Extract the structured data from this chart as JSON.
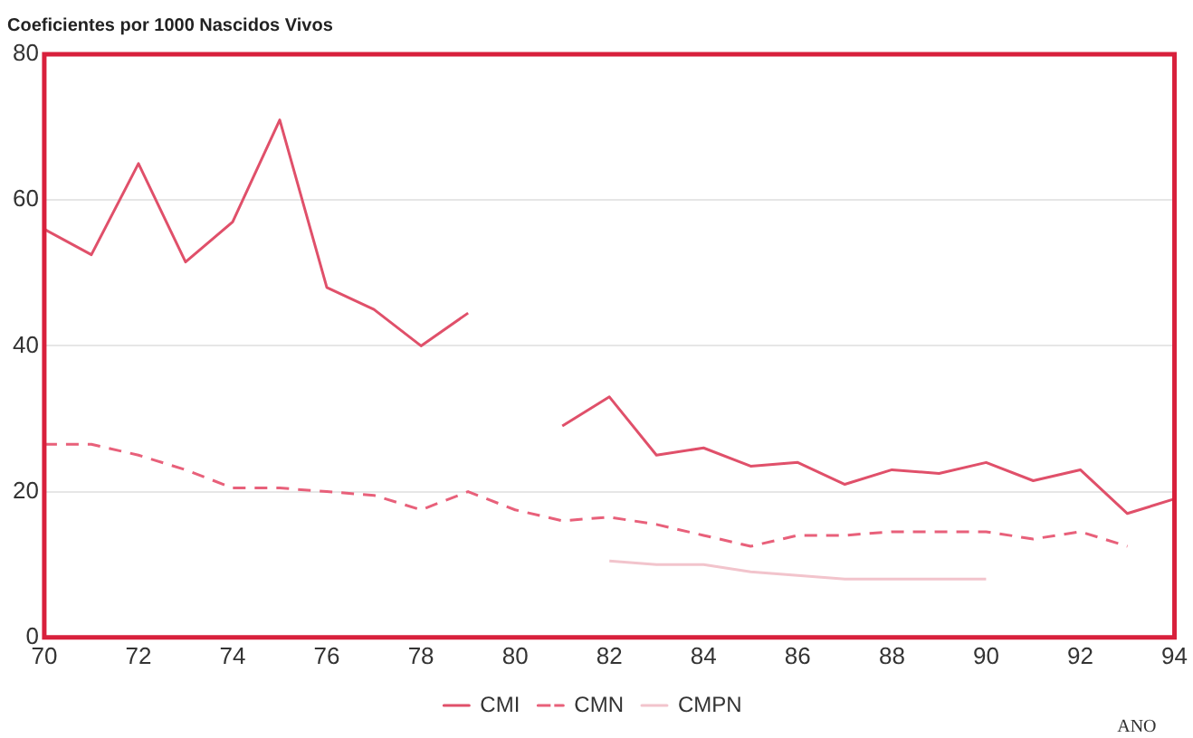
{
  "chart_data": {
    "type": "line",
    "title": "Coeficientes por 1000 Nascidos Vivos",
    "xlabel": "ANO",
    "x": [
      70,
      71,
      72,
      73,
      74,
      75,
      76,
      77,
      78,
      79,
      80,
      81,
      82,
      83,
      84,
      85,
      86,
      87,
      88,
      89,
      90,
      91,
      92,
      93,
      94
    ],
    "series": [
      {
        "name": "CMI",
        "color": "#e0506a",
        "line_style": "solid",
        "values": [
          56,
          52.5,
          65,
          51.5,
          57,
          71,
          48,
          45,
          40,
          44.5,
          null,
          29,
          33,
          25,
          26,
          23.5,
          24,
          21,
          23,
          22.5,
          24,
          21.5,
          23,
          17,
          19
        ]
      },
      {
        "name": "CMN",
        "color": "#e8607a",
        "line_style": "dashed",
        "values": [
          26.5,
          26.5,
          25,
          23,
          20.5,
          20.5,
          20,
          19.5,
          17.5,
          20,
          17.5,
          16,
          16.5,
          15.5,
          14,
          12.5,
          14,
          14,
          14.5,
          14.5,
          14.5,
          13.5,
          14.5,
          12.5,
          null
        ]
      },
      {
        "name": "CMPN",
        "color": "#f2c4cc",
        "line_style": "solid",
        "values": [
          null,
          null,
          null,
          null,
          null,
          null,
          null,
          null,
          null,
          null,
          null,
          null,
          10.5,
          10,
          10,
          9,
          8.5,
          8,
          8,
          8,
          8,
          null,
          null,
          null,
          null
        ]
      }
    ],
    "xlim": [
      70,
      94
    ],
    "xticks": [
      70,
      72,
      74,
      76,
      78,
      80,
      82,
      84,
      86,
      88,
      90,
      92,
      94
    ],
    "ylim": [
      0,
      80
    ],
    "yticks": [
      0,
      20,
      40,
      60,
      80
    ],
    "grid": "y",
    "legend": "bottom"
  }
}
